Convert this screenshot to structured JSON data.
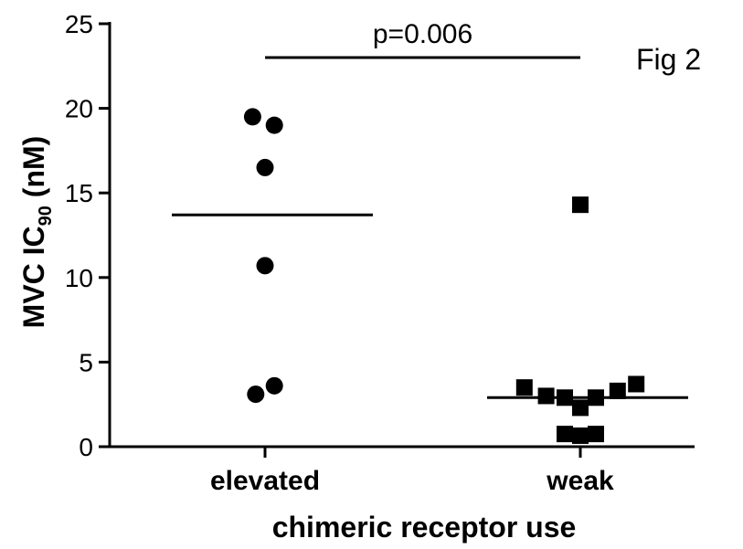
{
  "figure_label": "Fig 2",
  "chart_data": {
    "type": "scatter",
    "xlabel": "chimeric receptor use",
    "ylabel_main": "MVC IC",
    "ylabel_sub": "90",
    "ylabel_unit": " (nM)",
    "ylim": [
      0,
      25
    ],
    "yticks": [
      0,
      5,
      10,
      15,
      20,
      25
    ],
    "ytick_labels": [
      "0",
      "5",
      "10",
      "15",
      "20",
      "25"
    ],
    "categories": [
      "elevated",
      "weak"
    ],
    "grid": false,
    "series": [
      {
        "category": "elevated",
        "marker": "circle",
        "points": [
          {
            "offset": -0.08,
            "y": 19.5
          },
          {
            "offset": 0.06,
            "y": 19.0
          },
          {
            "offset": 0.0,
            "y": 16.5
          },
          {
            "offset": 0.0,
            "y": 10.7
          },
          {
            "offset": -0.06,
            "y": 3.1
          },
          {
            "offset": 0.06,
            "y": 3.6
          }
        ],
        "mean": 13.7
      },
      {
        "category": "weak",
        "marker": "square",
        "points": [
          {
            "offset": 0.0,
            "y": 14.3
          },
          {
            "offset": -0.36,
            "y": 3.5
          },
          {
            "offset": -0.22,
            "y": 3.0
          },
          {
            "offset": -0.1,
            "y": 2.9
          },
          {
            "offset": 0.0,
            "y": 2.3
          },
          {
            "offset": 0.1,
            "y": 2.9
          },
          {
            "offset": 0.24,
            "y": 3.3
          },
          {
            "offset": 0.36,
            "y": 3.7
          },
          {
            "offset": -0.1,
            "y": 0.75
          },
          {
            "offset": 0.0,
            "y": 0.65
          },
          {
            "offset": 0.1,
            "y": 0.75
          }
        ],
        "mean": 2.9
      }
    ],
    "annotations": [
      {
        "text": "p=0.006",
        "type": "significance-bar",
        "y": 23,
        "from": "elevated",
        "to": "weak"
      }
    ]
  }
}
